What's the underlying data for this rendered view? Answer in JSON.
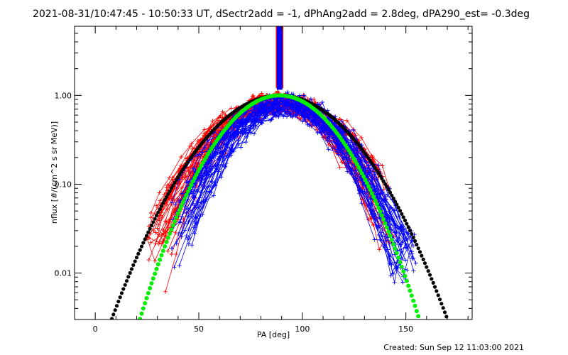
{
  "chart_data": {
    "type": "line",
    "title": "2021-08-31/10:47:45 - 10:50:33 UT, dSectr2add = -1, dPhAng2add = 2.8deg, dPA290_est= -0.3deg",
    "xlabel": "PA [deg]",
    "ylabel": "nflux [#/(cm^2 s sr MeV)]",
    "xlim": [
      -10,
      182
    ],
    "ylim": [
      0.003,
      6
    ],
    "yscale": "log",
    "grid": false,
    "xticks": [
      0,
      50,
      100,
      150
    ],
    "xtick_labels": [
      "0",
      "50",
      "100",
      "150"
    ],
    "yticks": [
      0.01,
      0.1,
      1.0
    ],
    "ytick_labels": [
      "0.01",
      "0.10",
      "1.00"
    ],
    "footer": "Created: Sun Sep 12 11:03:00 2021",
    "colors": {
      "red_series": "#ff0000",
      "blue_series": "#0000ff",
      "black_fit": "#000000",
      "green_fit": "#00ee00"
    },
    "fits": {
      "black": {
        "center": 89,
        "sigma": 23.8,
        "peak": 1.0
      },
      "green": {
        "center": 89,
        "sigma": 19.8,
        "peak": 1.0
      }
    },
    "bar": {
      "x": 89,
      "y_bottom": 1.2,
      "red_half_width": 1.8,
      "blue_half_width": 1.3
    },
    "red_traces": {
      "count": 38,
      "center": 88,
      "sigma": 22,
      "peak": 0.85,
      "floor": 0.012,
      "x_min": 24,
      "x_max": 146
    },
    "blue_traces": {
      "count": 42,
      "center": 91,
      "sigma": 20,
      "peak": 0.8,
      "floor": 0.013,
      "x_min": 36,
      "x_max": 156
    }
  }
}
